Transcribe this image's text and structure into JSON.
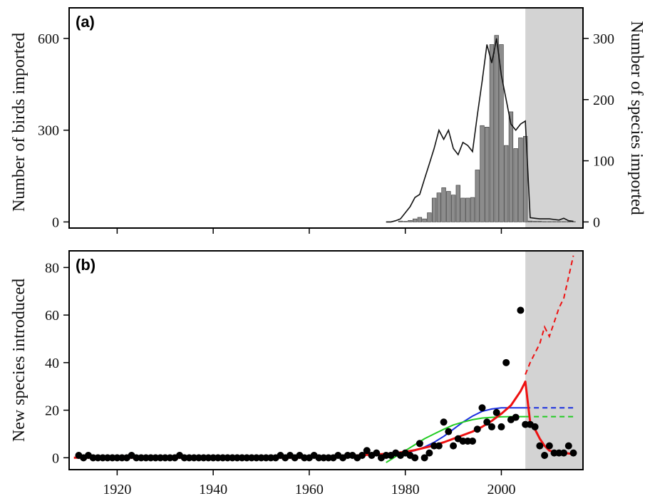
{
  "chart_data": [
    {
      "panel": "a",
      "panel_label": "(a)",
      "type": "bar",
      "ylabel": "Number of birds imported",
      "ylabel_right": "Number of species imported",
      "xlim": [
        1910,
        2017
      ],
      "ylim": [
        -20,
        700
      ],
      "ylim_right": [
        -10,
        350
      ],
      "yticks": [
        0,
        300,
        600
      ],
      "yticks_right": [
        0,
        100,
        200,
        300
      ],
      "xticks": [
        1920,
        1940,
        1960,
        1980,
        2000
      ],
      "shaded_region": [
        2005,
        2017
      ],
      "colors": {
        "bars": "#8c8c8c",
        "line": "#111111",
        "shade": "#d3d3d3"
      },
      "series": [
        {
          "axis": "left",
          "kind": "bar",
          "x": [
            1979,
            1980,
            1981,
            1982,
            1983,
            1984,
            1985,
            1986,
            1987,
            1988,
            1989,
            1990,
            1991,
            1992,
            1993,
            1994,
            1995,
            1996,
            1997,
            1998,
            1999,
            2000,
            2001,
            2002,
            2003,
            2004,
            2005,
            2006,
            2007,
            2008,
            2009,
            2010,
            2011,
            2012,
            2013,
            2014,
            2015
          ],
          "values": [
            3,
            2,
            5,
            10,
            15,
            10,
            30,
            78,
            95,
            112,
            100,
            88,
            120,
            78,
            78,
            80,
            170,
            315,
            310,
            580,
            610,
            580,
            250,
            360,
            240,
            275,
            280,
            3,
            2,
            2,
            1,
            1,
            1,
            1,
            1,
            1,
            1
          ]
        },
        {
          "axis": "right",
          "kind": "line",
          "x": [
            1976,
            1977,
            1978,
            1979,
            1980,
            1981,
            1982,
            1983,
            1984,
            1985,
            1986,
            1987,
            1988,
            1989,
            1990,
            1991,
            1992,
            1993,
            1994,
            1995,
            1996,
            1997,
            1998,
            1999,
            2000,
            2001,
            2002,
            2003,
            2004,
            2005,
            2006,
            2007,
            2008,
            2009,
            2010,
            2011,
            2012,
            2013,
            2014,
            2015
          ],
          "values": [
            0,
            0,
            2,
            5,
            15,
            25,
            40,
            45,
            70,
            95,
            120,
            150,
            135,
            150,
            120,
            110,
            130,
            125,
            115,
            175,
            230,
            290,
            260,
            300,
            240,
            200,
            160,
            150,
            160,
            165,
            7,
            6,
            5,
            5,
            5,
            4,
            3,
            6,
            2,
            1
          ]
        }
      ]
    },
    {
      "panel": "b",
      "panel_label": "(b)",
      "type": "scatter",
      "ylabel": "New species introduced",
      "xlim": [
        1910,
        2017
      ],
      "ylim": [
        -5,
        87
      ],
      "yticks": [
        0,
        20,
        40,
        60,
        80
      ],
      "xticks": [
        1920,
        1940,
        1960,
        1980,
        2000
      ],
      "shaded_region": [
        2005,
        2017
      ],
      "colors": {
        "points": "#000000",
        "blue": "#1a2fe0",
        "green": "#22cc22",
        "red": "#ee1111",
        "shade": "#d3d3d3"
      },
      "points": {
        "x": [
          1912,
          1913,
          1914,
          1915,
          1916,
          1917,
          1918,
          1919,
          1920,
          1921,
          1922,
          1923,
          1924,
          1925,
          1926,
          1927,
          1928,
          1929,
          1930,
          1931,
          1932,
          1933,
          1934,
          1935,
          1936,
          1937,
          1938,
          1939,
          1940,
          1941,
          1942,
          1943,
          1944,
          1945,
          1946,
          1947,
          1948,
          1949,
          1950,
          1951,
          1952,
          1953,
          1954,
          1955,
          1956,
          1957,
          1958,
          1959,
          1960,
          1961,
          1962,
          1963,
          1964,
          1965,
          1966,
          1967,
          1968,
          1969,
          1970,
          1971,
          1972,
          1973,
          1974,
          1975,
          1976,
          1977,
          1978,
          1979,
          1980,
          1981,
          1982,
          1983,
          1984,
          1985,
          1986,
          1987,
          1988,
          1989,
          1990,
          1991,
          1992,
          1993,
          1994,
          1995,
          1996,
          1997,
          1998,
          1999,
          2000,
          2001,
          2002,
          2003,
          2004,
          2005,
          2006,
          2007,
          2008,
          2009,
          2010,
          2011,
          2012,
          2013,
          2014,
          2015
        ],
        "y": [
          1,
          0,
          1,
          0,
          0,
          0,
          0,
          0,
          0,
          0,
          0,
          1,
          0,
          0,
          0,
          0,
          0,
          0,
          0,
          0,
          0,
          1,
          0,
          0,
          0,
          0,
          0,
          0,
          0,
          0,
          0,
          0,
          0,
          0,
          0,
          0,
          0,
          0,
          0,
          0,
          0,
          0,
          1,
          0,
          1,
          0,
          1,
          0,
          0,
          1,
          0,
          0,
          0,
          0,
          1,
          0,
          1,
          1,
          0,
          1,
          3,
          1,
          2,
          0,
          1,
          1,
          2,
          1,
          2,
          1,
          0,
          6,
          0,
          2,
          5,
          5,
          15,
          11,
          5,
          8,
          7,
          7,
          7,
          12,
          21,
          15,
          13,
          19,
          13,
          40,
          16,
          17,
          62,
          14,
          14,
          13,
          5,
          1,
          5,
          2,
          2,
          2,
          5,
          2
        ]
      },
      "fits": [
        {
          "color_key": "blue",
          "x_solid": [
            1976,
            1978,
            1980,
            1982,
            1984,
            1986,
            1988,
            1990,
            1992,
            1994,
            1996,
            1998,
            2000,
            2002,
            2005
          ],
          "y_solid": [
            1,
            1.3,
            2,
            3,
            4.5,
            6.5,
            9,
            12,
            15,
            17.5,
            19.5,
            20.5,
            21,
            21,
            21
          ],
          "x_dashed": [
            2005,
            2015
          ],
          "y_dashed": [
            21,
            21
          ]
        },
        {
          "color_key": "green",
          "x_solid": [
            1976,
            1978,
            1980,
            1982,
            1984,
            1986,
            1988,
            1990,
            1992,
            1994,
            1996,
            1998,
            2000,
            2002,
            2005
          ],
          "y_solid": [
            -2,
            0.5,
            3,
            5.5,
            8,
            10,
            12,
            13.8,
            15,
            16,
            16.7,
            17,
            17.2,
            17.3,
            17.3
          ],
          "x_dashed": [
            2005,
            2015
          ],
          "y_dashed": [
            17.3,
            17.3
          ]
        },
        {
          "color_key": "red",
          "x_solid": [
            1911,
            1920,
            1930,
            1940,
            1950,
            1960,
            1970,
            1975,
            1978,
            1980,
            1982,
            1984,
            1986,
            1988,
            1990,
            1992,
            1994,
            1996,
            1998,
            2000,
            2002,
            2003,
            2004,
            2005,
            2006,
            2007,
            2008,
            2009,
            2010,
            2011,
            2012,
            2013,
            2014,
            2015
          ],
          "y_solid": [
            0,
            0,
            0,
            0,
            0,
            0,
            1,
            1.5,
            2,
            2.5,
            3.2,
            4.2,
            5.2,
            6.5,
            8,
            9.5,
            11,
            13,
            15.5,
            18.5,
            22,
            25,
            28,
            32,
            15,
            12,
            8,
            5,
            3,
            2.5,
            2,
            2,
            1.8,
            1.5
          ],
          "x_dashed": [
            2005,
            2006,
            2007,
            2008,
            2009,
            2010,
            2011,
            2012,
            2013,
            2014,
            2015
          ],
          "y_dashed": [
            35,
            40,
            44,
            48,
            55,
            51,
            57,
            63,
            67,
            76,
            85
          ]
        }
      ]
    }
  ]
}
